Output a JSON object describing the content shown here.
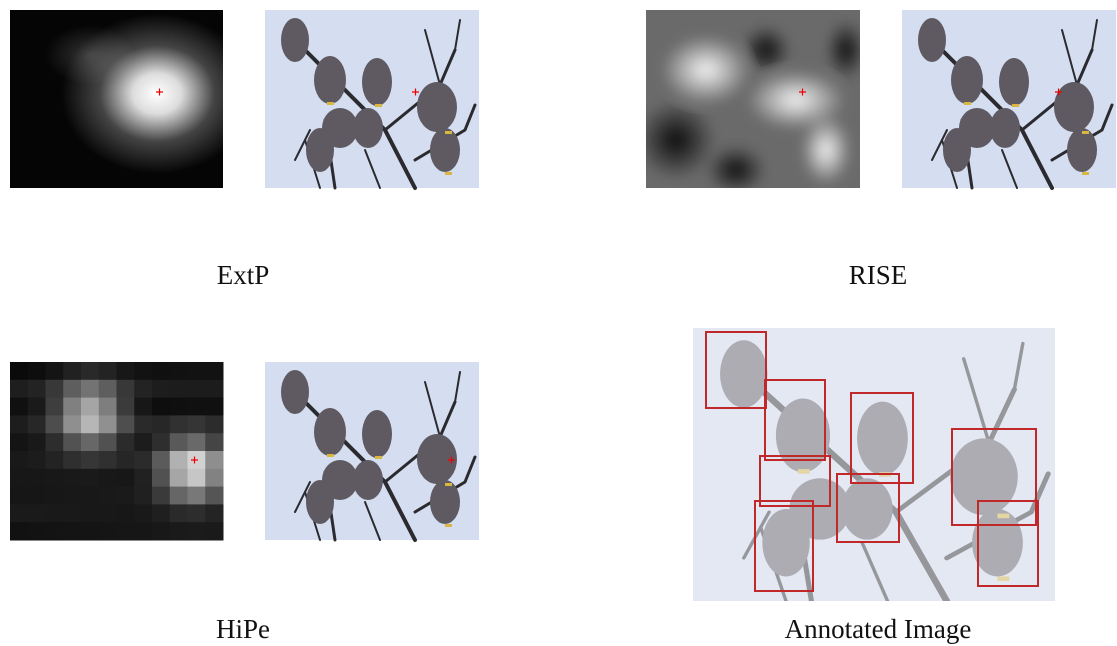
{
  "panels": [
    {
      "label": "ExtP"
    },
    {
      "label": "RISE"
    },
    {
      "label": "HiPe"
    },
    {
      "label": "Annotated Image"
    }
  ]
}
